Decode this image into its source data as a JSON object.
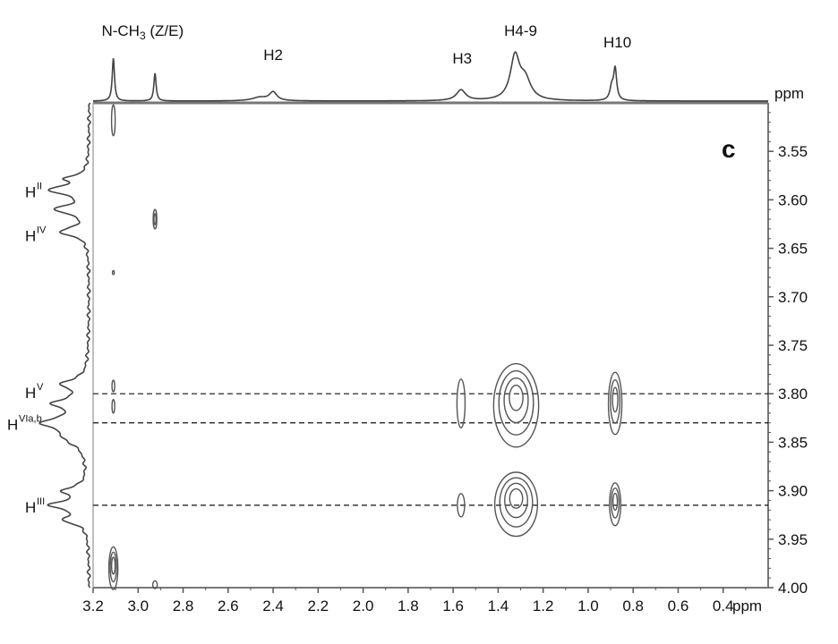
{
  "chart_data": {
    "type": "heatmap",
    "subtype": "2D NMR contour plot with 1D projections",
    "panel_label": "c",
    "x_axis": {
      "label": "ppm",
      "range": [
        3.2,
        0.2
      ],
      "reversed": true,
      "ticks": [
        "3.2",
        "3.0",
        "2.8",
        "2.6",
        "2.4",
        "2.2",
        "2.0",
        "1.8",
        "1.6",
        "1.4",
        "1.2",
        "1.0",
        "0.8",
        "0.6",
        "0.4"
      ]
    },
    "y_axis": {
      "label": "ppm",
      "range": [
        3.5,
        4.0
      ],
      "reversed": true,
      "position": "right",
      "ticks": [
        "3.55",
        "3.60",
        "3.65",
        "3.70",
        "3.75",
        "3.80",
        "3.85",
        "3.90",
        "3.95",
        "4.00"
      ]
    },
    "top_spectrum": {
      "peaks": [
        {
          "ppm": 3.11,
          "height": 1.0,
          "width": 0.006
        },
        {
          "ppm": 2.925,
          "height": 0.65,
          "width": 0.006
        },
        {
          "ppm": 2.4,
          "height": 0.2,
          "width": 0.02
        },
        {
          "ppm": 2.46,
          "height": 0.08,
          "width": 0.04
        },
        {
          "ppm": 1.565,
          "height": 0.25,
          "width": 0.025
        },
        {
          "ppm": 1.325,
          "height": 1.0,
          "width": 0.025
        },
        {
          "ppm": 1.28,
          "height": 0.45,
          "width": 0.03
        },
        {
          "ppm": 0.88,
          "height": 0.72,
          "width": 0.008
        },
        {
          "ppm": 0.895,
          "height": 0.3,
          "width": 0.01
        }
      ],
      "labels": [
        {
          "text": "N-CH",
          "sub": "3",
          "rest": " (Z/E)",
          "ppm": 2.98
        },
        {
          "text": "H2",
          "ppm": 2.4
        },
        {
          "text": "H3",
          "ppm": 1.56
        },
        {
          "text": "H4-9",
          "ppm": 1.3
        },
        {
          "text": "H10",
          "ppm": 0.87
        }
      ]
    },
    "left_spectrum": {
      "peaks": [
        {
          "ppm": 3.578,
          "height": 0.5,
          "width": 0.004
        },
        {
          "ppm": 3.59,
          "height": 1.0,
          "width": 0.005
        },
        {
          "ppm": 3.61,
          "height": 0.85,
          "width": 0.005
        },
        {
          "ppm": 3.633,
          "height": 0.75,
          "width": 0.005
        },
        {
          "ppm": 3.79,
          "height": 0.65,
          "width": 0.006
        },
        {
          "ppm": 3.81,
          "height": 0.8,
          "width": 0.006
        },
        {
          "ppm": 3.83,
          "height": 1.05,
          "width": 0.007
        },
        {
          "ppm": 3.845,
          "height": 0.5,
          "width": 0.01
        },
        {
          "ppm": 3.9,
          "height": 0.6,
          "width": 0.005
        },
        {
          "ppm": 3.915,
          "height": 0.95,
          "width": 0.005
        },
        {
          "ppm": 3.93,
          "height": 0.6,
          "width": 0.005
        }
      ],
      "labels": [
        {
          "base": "H",
          "sup": "II",
          "ppm": 3.59
        },
        {
          "base": "H",
          "sup": "IV",
          "ppm": 3.635
        },
        {
          "base": "H",
          "sup": "V",
          "ppm": 3.797
        },
        {
          "base": "H",
          "sup": "VIa,b",
          "ppm": 3.83
        },
        {
          "base": "H",
          "sup": "III",
          "ppm": 3.915
        }
      ]
    },
    "cross_peaks": [
      {
        "x": 3.11,
        "y": 3.518,
        "rx": 0.008,
        "ry": 0.016,
        "levels": 1
      },
      {
        "x": 2.925,
        "y": 3.62,
        "rx": 0.008,
        "ry": 0.01,
        "levels": 2
      },
      {
        "x": 3.11,
        "y": 3.675,
        "rx": 0.003,
        "ry": 0.002,
        "levels": 1
      },
      {
        "x": 3.11,
        "y": 3.792,
        "rx": 0.006,
        "ry": 0.006,
        "levels": 1
      },
      {
        "x": 3.11,
        "y": 3.813,
        "rx": 0.006,
        "ry": 0.007,
        "levels": 1
      },
      {
        "x": 3.11,
        "y": 3.98,
        "rx": 0.02,
        "ry": 0.022,
        "levels": 3
      },
      {
        "x": 2.925,
        "y": 3.997,
        "rx": 0.01,
        "ry": 0.004,
        "levels": 1
      },
      {
        "x": 1.565,
        "y": 3.81,
        "rx": 0.018,
        "ry": 0.025,
        "levels": 1
      },
      {
        "x": 1.565,
        "y": 3.915,
        "rx": 0.016,
        "ry": 0.012,
        "levels": 1
      },
      {
        "x": 1.32,
        "y": 3.812,
        "rx": 0.1,
        "ry": 0.043,
        "levels": 4
      },
      {
        "x": 1.32,
        "y": 3.914,
        "rx": 0.095,
        "ry": 0.033,
        "levels": 4
      },
      {
        "x": 0.88,
        "y": 3.81,
        "rx": 0.03,
        "ry": 0.032,
        "levels": 3
      },
      {
        "x": 0.88,
        "y": 3.914,
        "rx": 0.025,
        "ry": 0.022,
        "levels": 3
      }
    ],
    "dashed_lines_ppm": [
      3.8,
      3.83,
      3.915
    ],
    "grid": false
  }
}
